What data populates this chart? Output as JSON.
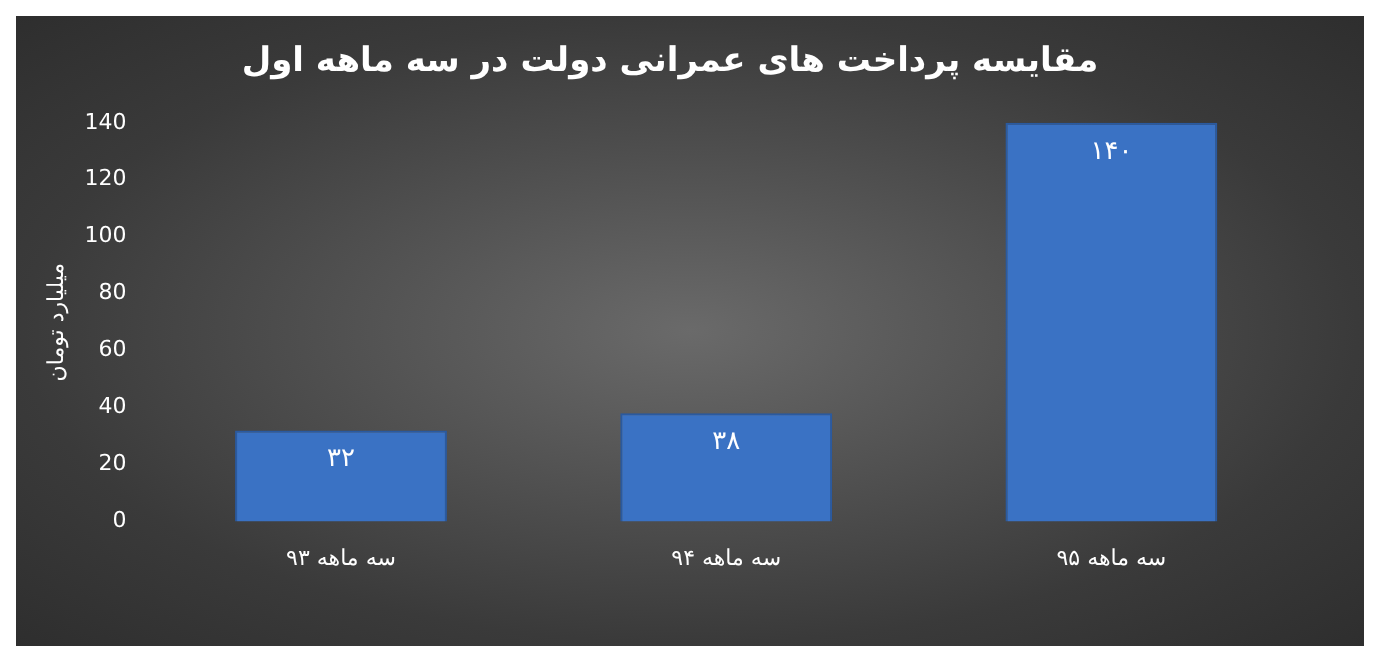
{
  "chart_data": {
    "type": "bar",
    "title": "مقایسه پرداخت های عمرانی دولت در سه ماهه اول",
    "ylabel": "میلیارد تومان",
    "categories": [
      "سه ماهه ۹۳",
      "سه ماهه ۹۴",
      "سه ماهه ۹۵"
    ],
    "values": [
      32,
      38,
      140
    ],
    "value_labels": [
      "۳۲",
      "۳۸",
      "۱۴۰"
    ],
    "color": "#3a72c4",
    "ylim": [
      0,
      140
    ],
    "yticks": [
      0,
      20,
      40,
      60,
      80,
      100,
      120,
      140
    ],
    "grid": false,
    "legend": false
  }
}
